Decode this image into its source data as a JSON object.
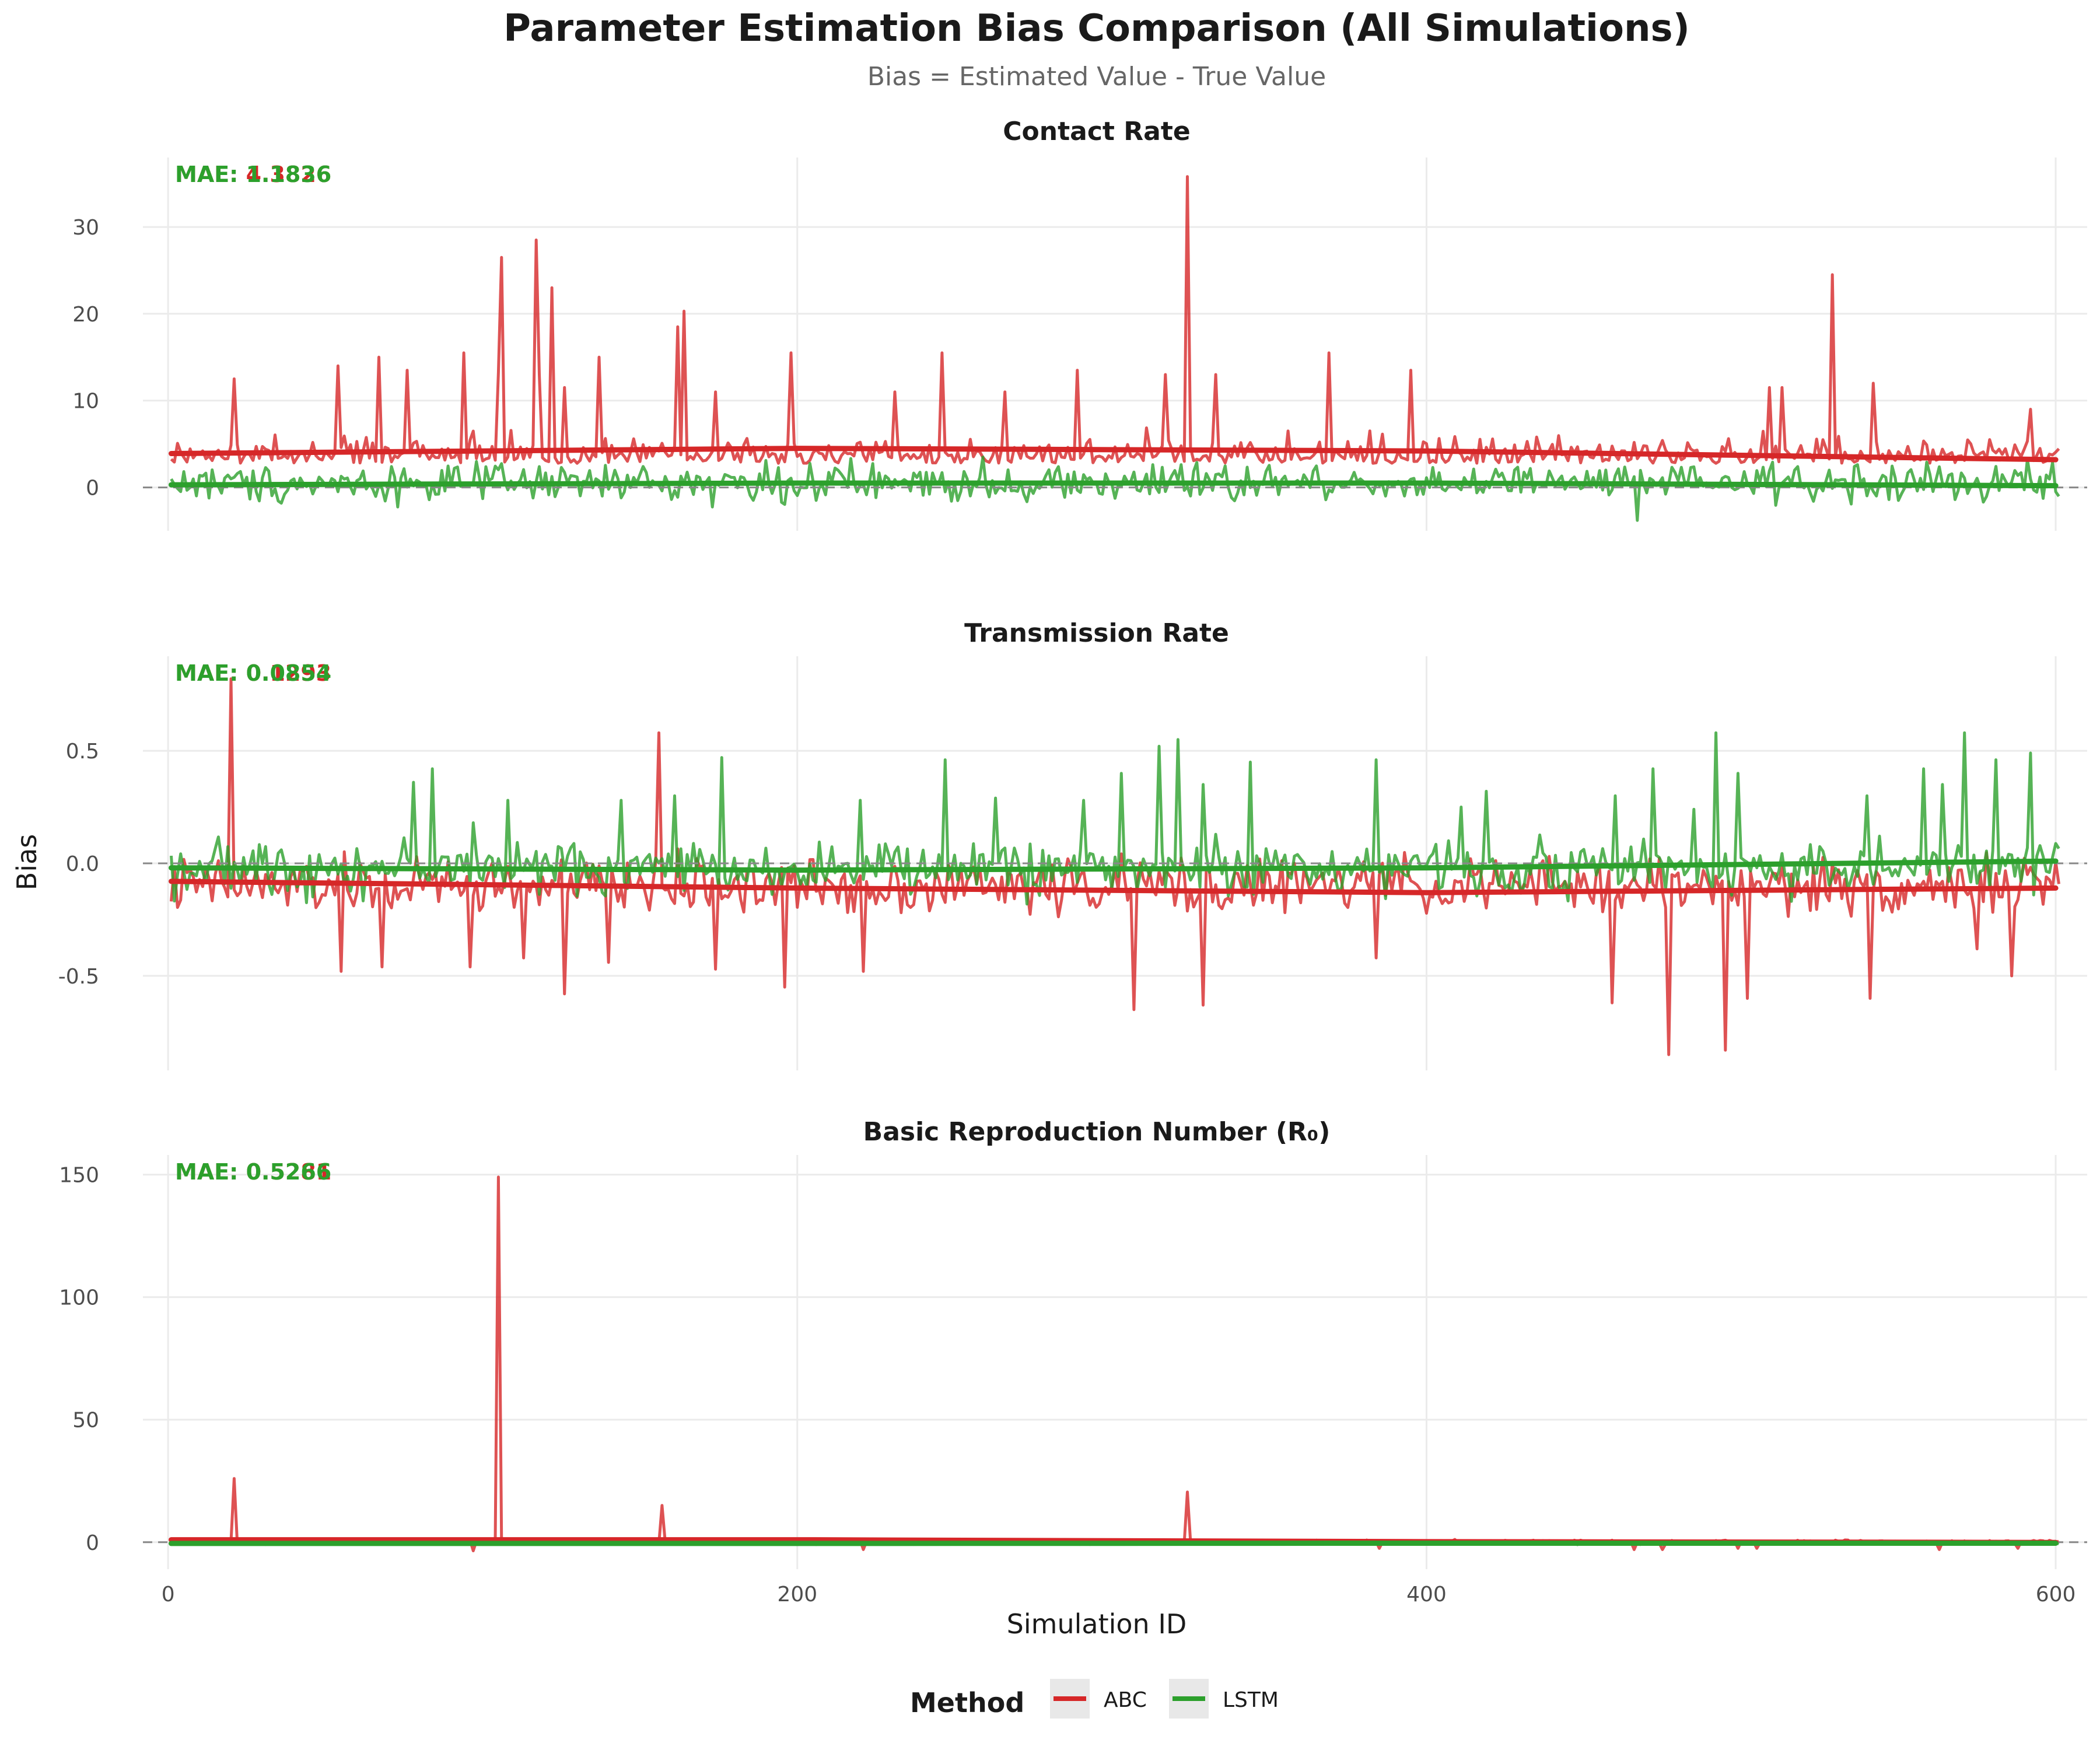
{
  "title": "Parameter Estimation Bias Comparison (All Simulations)",
  "subtitle": "Bias = Estimated Value - True Value",
  "xlabel": "Simulation ID",
  "ylabel": "Bias",
  "legend": {
    "title": "Method"
  },
  "colors": {
    "ABC": "#d62728",
    "LSTM": "#2ca02c",
    "zero_line": "#888888",
    "grid": "#ebebeb"
  },
  "chart_data": {
    "type": "line",
    "x_ticks": [
      0,
      200,
      400,
      600
    ],
    "xlim": [
      -8,
      610
    ],
    "series_names": [
      "ABC",
      "LSTM"
    ],
    "panels": [
      {
        "title": "Contact Rate",
        "ylim": [
          -5,
          38
        ],
        "y_ticks": [
          0,
          10,
          20,
          30
        ],
        "y_tick_labels": [
          "0",
          "10",
          "20",
          "30"
        ],
        "mae_prefix": "MAE: ",
        "mae": {
          "ABC": "4.3826",
          "LSTM": "1.1836"
        },
        "trend": {
          "ABC": [
            3.9,
            4.5,
            4.2,
            3.2
          ],
          "LSTM": [
            0.3,
            0.5,
            0.5,
            0.2
          ]
        },
        "ABC": {
          "base": 4,
          "noise": 3.5,
          "pos_only": true,
          "spikes": [
            [
              20,
              12.5
            ],
            [
              53,
              14
            ],
            [
              66,
              15
            ],
            [
              75,
              13.5
            ],
            [
              93,
              15.5
            ],
            [
              104,
              13.2
            ],
            [
              105,
              26.5
            ],
            [
              116,
              28.5
            ],
            [
              117,
              13
            ],
            [
              121,
              23
            ],
            [
              125,
              11.5
            ],
            [
              136,
              15
            ],
            [
              161,
              18.5
            ],
            [
              163,
              20.3
            ],
            [
              173,
              11
            ],
            [
              197,
              15.5
            ],
            [
              230,
              11
            ],
            [
              245,
              15.5
            ],
            [
              265,
              11
            ],
            [
              288,
              13.5
            ],
            [
              316,
              13
            ],
            [
              323,
              35.8
            ],
            [
              332,
              13
            ],
            [
              368,
              15.5
            ],
            [
              394,
              13.5
            ],
            [
              508,
              11.5
            ],
            [
              512,
              11.5
            ],
            [
              528,
              24.5
            ],
            [
              541,
              12
            ],
            [
              591,
              9
            ]
          ]
        },
        "LSTM": {
          "base": 0.5,
          "noise": 3.2,
          "spikes": [
            [
              258,
              3.5
            ],
            [
              466,
              -3.8
            ]
          ]
        }
      },
      {
        "title": "Transmission Rate",
        "ylim": [
          -0.92,
          0.92
        ],
        "y_ticks": [
          -0.5,
          0,
          0.5
        ],
        "y_tick_labels": [
          "-0.5",
          "0.0",
          "0.5"
        ],
        "mae_prefix": "MAE: ",
        "mae": {
          "ABC": "0.1293",
          "LSTM": "0.0854"
        },
        "trend": {
          "ABC": [
            -0.08,
            -0.11,
            -0.13,
            -0.11
          ],
          "LSTM": [
            -0.02,
            -0.03,
            -0.02,
            0.01
          ]
        },
        "ABC": {
          "base": -0.1,
          "noise": 0.18,
          "spikes": [
            [
              19,
              0.82
            ],
            [
              54,
              -0.48
            ],
            [
              67,
              -0.46
            ],
            [
              95,
              -0.46
            ],
            [
              112,
              -0.42
            ],
            [
              125,
              -0.58
            ],
            [
              139,
              -0.44
            ],
            [
              155,
              0.58
            ],
            [
              173,
              -0.47
            ],
            [
              195,
              -0.55
            ],
            [
              220,
              -0.48
            ],
            [
              306,
              -0.65
            ],
            [
              328,
              -0.63
            ],
            [
              383,
              -0.42
            ],
            [
              458,
              -0.62
            ],
            [
              476,
              -0.85
            ],
            [
              494,
              -0.83
            ],
            [
              501,
              -0.6
            ],
            [
              540,
              -0.6
            ],
            [
              574,
              -0.38
            ],
            [
              585,
              -0.5
            ]
          ]
        },
        "LSTM": {
          "base": -0.02,
          "noise": 0.17,
          "spikes": [
            [
              77,
              0.36
            ],
            [
              83,
              0.42
            ],
            [
              96,
              0.18
            ],
            [
              107,
              0.28
            ],
            [
              143,
              0.28
            ],
            [
              160,
              0.3
            ],
            [
              175,
              0.47
            ],
            [
              219,
              0.28
            ],
            [
              246,
              0.46
            ],
            [
              262,
              0.29
            ],
            [
              290,
              0.28
            ],
            [
              302,
              0.4
            ],
            [
              314,
              0.52
            ],
            [
              320,
              0.55
            ],
            [
              328,
              0.35
            ],
            [
              343,
              0.45
            ],
            [
              383,
              0.46
            ],
            [
              410,
              0.25
            ],
            [
              418,
              0.32
            ],
            [
              459,
              0.3
            ],
            [
              471,
              0.42
            ],
            [
              484,
              0.24
            ],
            [
              491,
              0.58
            ],
            [
              498,
              0.4
            ],
            [
              539,
              0.3
            ],
            [
              557,
              0.42
            ],
            [
              563,
              0.35
            ],
            [
              570,
              0.58
            ],
            [
              580,
              0.46
            ],
            [
              591,
              0.49
            ]
          ]
        }
      },
      {
        "title": "Basic Reproduction Number (R₀)",
        "ylim": [
          -11,
          158
        ],
        "y_ticks": [
          0,
          50,
          100,
          150
        ],
        "y_tick_labels": [
          "0",
          "50",
          "100",
          "150"
        ],
        "mae_prefix": "MAE: ",
        "mae": {
          "ABC": "0.5281",
          "LSTM": "0.5266"
        },
        "trend": {
          "ABC": [
            1.0,
            1.0,
            0.2,
            -0.1
          ],
          "LSTM": [
            -0.5,
            -0.5,
            -0.4,
            -0.4
          ]
        },
        "ABC": {
          "base": 0.1,
          "noise": 1.2,
          "spikes": [
            [
              20,
              26
            ],
            [
              96,
              -3.5
            ],
            [
              104,
              149
            ],
            [
              156,
              15
            ],
            [
              220,
              -3
            ],
            [
              323,
              20.5
            ],
            [
              384,
              -2.5
            ],
            [
              465,
              -3
            ],
            [
              474,
              -3
            ],
            [
              498,
              -2.5
            ],
            [
              504,
              -2.5
            ],
            [
              562,
              -3
            ],
            [
              587,
              -2.5
            ]
          ]
        },
        "LSTM": {
          "base": -0.3,
          "noise": 0.8,
          "spikes": []
        }
      }
    ]
  }
}
